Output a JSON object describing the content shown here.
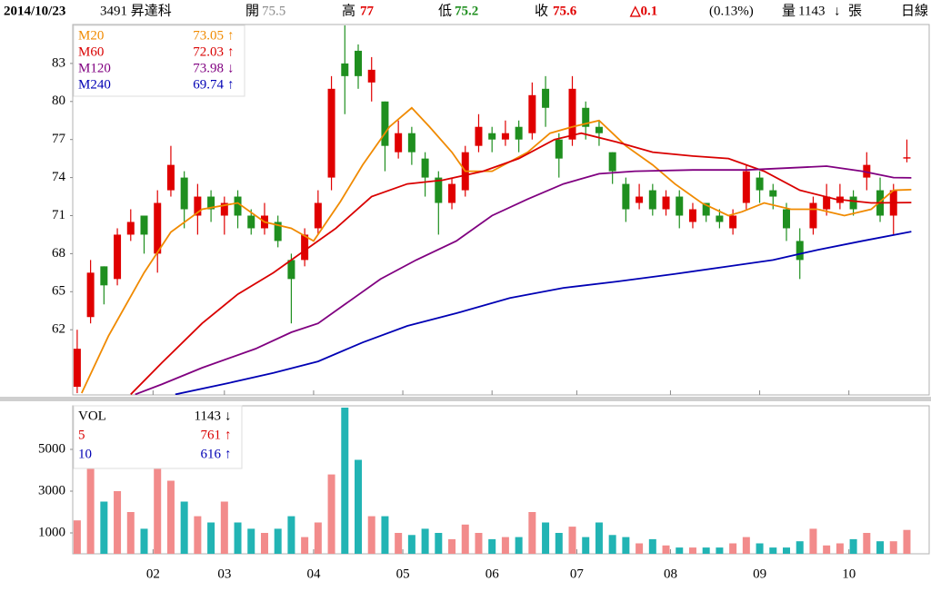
{
  "header": {
    "date": "2014/10/23",
    "stock": "3491 昇達科",
    "open_label": "開",
    "open": 75.5,
    "high_label": "高",
    "high": 77,
    "low_label": "低",
    "low": 75.2,
    "close_label": "收",
    "close": 75.6,
    "change": "△0.1",
    "change_pct": "(0.13%)",
    "volume_label": "量",
    "volume": 1143,
    "volume_arrow": "↓",
    "volume_unit": "張",
    "period": "日線"
  },
  "chart_data": [
    {
      "type": "candlestick",
      "up_color": "#e00000",
      "down_color": "#1f8f1f",
      "xlim": [
        0,
        192
      ],
      "ylim": [
        56.86,
        86.07
      ],
      "yticks": [
        62,
        65,
        68,
        71,
        74,
        77,
        80,
        83
      ],
      "x": [
        1,
        4,
        7,
        10,
        13,
        16,
        19,
        22,
        25,
        28,
        31,
        34,
        37,
        40,
        43,
        46,
        49,
        52,
        55,
        58,
        61,
        64,
        67,
        70,
        73,
        76,
        79,
        82,
        85,
        88,
        91,
        94,
        97,
        100,
        103,
        106,
        109,
        112,
        115,
        118,
        121,
        124,
        127,
        130,
        133,
        136,
        139,
        142,
        145,
        148,
        151,
        154,
        157,
        160,
        163,
        166,
        169,
        172,
        175,
        178,
        181,
        184,
        187
      ],
      "open": [
        57.5,
        63,
        67,
        66,
        69.5,
        71,
        68,
        73,
        74,
        71,
        72.5,
        71,
        72.5,
        71,
        70,
        70.5,
        67.5,
        67.5,
        70,
        74,
        83,
        84,
        81.5,
        80,
        76,
        77.5,
        75.5,
        74,
        72,
        73,
        76.5,
        77.5,
        77,
        78,
        77.5,
        81,
        77,
        77,
        79.5,
        78,
        76,
        73.5,
        72,
        73,
        71.5,
        72.5,
        70.5,
        72,
        71,
        70,
        72,
        74,
        73,
        71.5,
        69,
        70,
        71.5,
        72,
        72.5,
        74,
        73,
        71,
        75.5
      ],
      "close": [
        60.5,
        66.5,
        65.5,
        69.5,
        70.5,
        69.5,
        72,
        75,
        71.5,
        72.5,
        71.5,
        72,
        71,
        70,
        71,
        69,
        66,
        69.5,
        72,
        81,
        82,
        82,
        82.5,
        76.5,
        77.5,
        76,
        74,
        72,
        73.5,
        76,
        78,
        77,
        77.5,
        77,
        80.5,
        79.5,
        75.5,
        81,
        78,
        77.5,
        74.5,
        71.5,
        72.5,
        71.5,
        72.5,
        71,
        71.5,
        71,
        70.5,
        71,
        74.5,
        73,
        72.5,
        70,
        67.5,
        72,
        72.5,
        72.5,
        71.5,
        75,
        71,
        73,
        75.6
      ],
      "high": [
        62,
        67.5,
        67,
        70,
        71.5,
        71,
        73,
        76.5,
        74.5,
        73.5,
        73,
        72.5,
        73,
        71.5,
        72,
        71,
        68,
        70,
        73,
        82,
        86,
        84.5,
        83.5,
        80,
        78.5,
        78,
        76,
        74.5,
        74,
        76.5,
        79,
        78,
        78.5,
        78.5,
        81.5,
        82,
        77.5,
        82,
        80,
        78.5,
        76,
        74,
        73.5,
        73.5,
        73,
        73,
        72,
        72,
        71.5,
        71.5,
        75,
        74.5,
        73.5,
        72,
        70,
        72.5,
        73.5,
        73.5,
        73,
        76,
        74,
        73.5,
        77
      ],
      "low": [
        57,
        62.5,
        64,
        65.5,
        69,
        68,
        66.5,
        72.5,
        70,
        69.5,
        70.5,
        69.5,
        70,
        69.5,
        69.5,
        68.5,
        62.5,
        67,
        69.5,
        73,
        79,
        81,
        80,
        74.5,
        75.5,
        75,
        72.5,
        69.5,
        71.5,
        72.5,
        76,
        76,
        76.5,
        76,
        77,
        78,
        74,
        76.5,
        77,
        76.5,
        73.5,
        70.5,
        71.5,
        71,
        71,
        70,
        70,
        70.5,
        70,
        69.5,
        71.5,
        72,
        71.5,
        69,
        66,
        69.5,
        71,
        71.5,
        71,
        73,
        70.5,
        69.5,
        75.2
      ],
      "series": [
        {
          "name": "M20",
          "color": "#f08a00",
          "last": 73.05,
          "trend": "↑",
          "x": [
            2,
            8,
            16,
            22,
            29,
            37,
            43,
            49,
            54,
            60,
            65,
            71,
            76,
            80,
            85,
            88,
            94,
            102,
            107,
            112,
            118,
            124,
            130,
            135,
            141,
            147,
            150,
            155,
            161,
            167,
            173,
            179,
            184,
            188
          ],
          "values": [
            57,
            61.5,
            66.5,
            69.7,
            71.5,
            72,
            70.5,
            70,
            69,
            72.1,
            75,
            78,
            79.5,
            78,
            76,
            74.5,
            74.5,
            76,
            77.5,
            78,
            78.5,
            76.5,
            75,
            73.5,
            72,
            71,
            71.3,
            72,
            71.5,
            71.5,
            71,
            71.5,
            73,
            73.05
          ]
        },
        {
          "name": "M60",
          "color": "#d90000",
          "last": 72.03,
          "trend": "↑",
          "x": [
            13,
            20,
            29,
            37,
            45,
            53,
            59,
            67,
            75,
            83,
            92,
            100,
            108,
            114,
            122,
            130,
            139,
            147,
            155,
            163,
            171,
            179,
            188
          ],
          "values": [
            56.9,
            59.4,
            62.5,
            64.8,
            66.5,
            68.5,
            70,
            72.5,
            73.5,
            73.8,
            74.5,
            75.5,
            77,
            77.5,
            76.8,
            76,
            75.7,
            75.5,
            74.5,
            73,
            72.3,
            72,
            72.03
          ]
        },
        {
          "name": "M120",
          "color": "#800080",
          "last": 73.98,
          "trend": "↓",
          "x": [
            14,
            20,
            29,
            41,
            49,
            55,
            61,
            69,
            77,
            86,
            94,
            102,
            110,
            118,
            126,
            139,
            151,
            163,
            169,
            177,
            184,
            188
          ],
          "values": [
            56.9,
            57.7,
            59,
            60.5,
            61.8,
            62.5,
            64,
            66,
            67.5,
            69,
            71,
            72.3,
            73.5,
            74.3,
            74.5,
            74.6,
            74.6,
            74.8,
            74.9,
            74.5,
            74,
            73.98
          ]
        },
        {
          "name": "M240",
          "color": "#0000b4",
          "last": 69.74,
          "trend": "↑",
          "x": [
            23,
            35,
            45,
            55,
            65,
            75,
            86,
            98,
            110,
            122,
            135,
            147,
            157,
            167,
            177,
            188
          ],
          "values": [
            56.9,
            57.8,
            58.6,
            59.5,
            61,
            62.3,
            63.3,
            64.5,
            65.3,
            65.8,
            66.4,
            67,
            67.5,
            68.3,
            69,
            69.74
          ]
        }
      ]
    },
    {
      "type": "volume",
      "up_color": "#f28b8b",
      "down_color": "#22b4b4",
      "xlim": [
        0,
        192
      ],
      "ylim": [
        0,
        7087
      ],
      "yticks": [
        1000,
        3000,
        5000
      ],
      "xticks": [
        {
          "value": 18,
          "label": "02"
        },
        {
          "value": 34,
          "label": "03"
        },
        {
          "value": 54,
          "label": "04"
        },
        {
          "value": 74,
          "label": "05"
        },
        {
          "value": 94,
          "label": "06"
        },
        {
          "value": 113,
          "label": "07"
        },
        {
          "value": 134,
          "label": "08"
        },
        {
          "value": 154,
          "label": "09"
        },
        {
          "value": 174,
          "label": "10"
        }
      ],
      "series": [
        {
          "name": "VOL",
          "color": "#000000",
          "last": 1143,
          "trend": "↓",
          "values": [
            1600,
            4500,
            2500,
            3000,
            2000,
            1200,
            5000,
            3500,
            2500,
            1800,
            1500,
            2500,
            1500,
            1200,
            1000,
            1200,
            1800,
            800,
            1500,
            3800,
            7000,
            4500,
            1800,
            1800,
            1000,
            900,
            1200,
            1000,
            700,
            1400,
            1000,
            700,
            800,
            800,
            2000,
            1500,
            1000,
            1300,
            800,
            1500,
            900,
            800,
            500,
            700,
            400,
            300,
            300,
            300,
            300,
            500,
            800,
            500,
            300,
            300,
            600,
            1200,
            400,
            500,
            700,
            1000,
            600,
            600,
            1143
          ]
        },
        {
          "name": "5",
          "color": "#d90000",
          "last": 761,
          "trend": "↑"
        },
        {
          "name": "10",
          "color": "#0000b4",
          "last": 616,
          "trend": "↑"
        }
      ]
    }
  ]
}
